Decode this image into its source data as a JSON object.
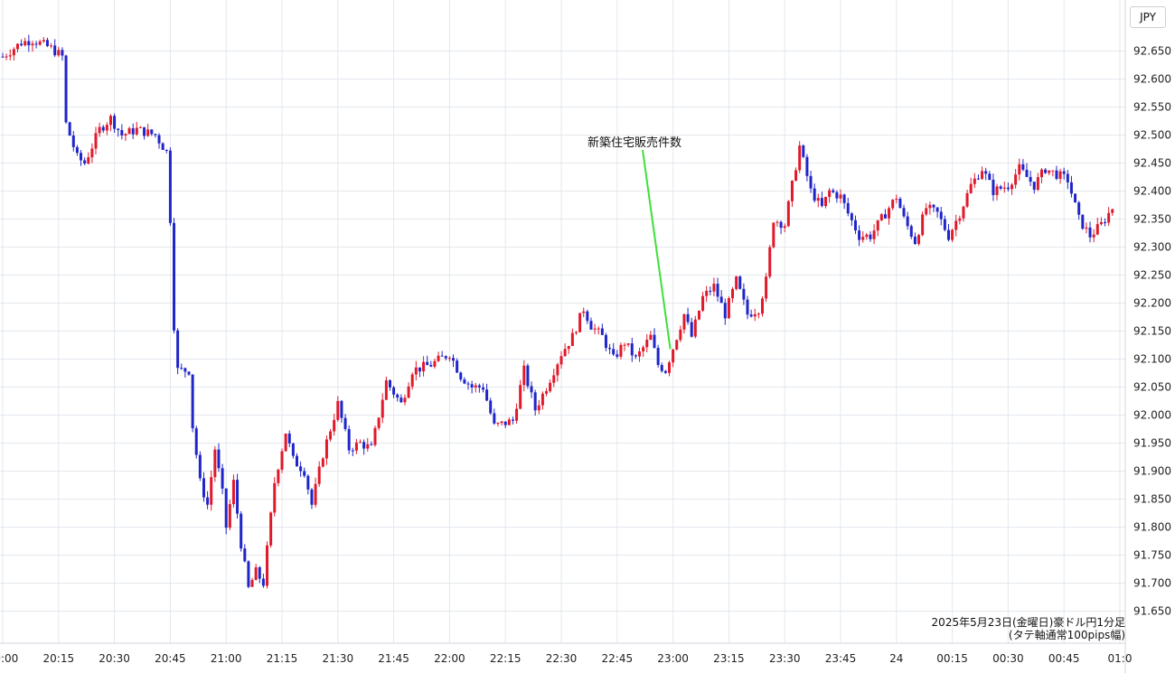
{
  "currency": "JPY",
  "caption": {
    "line1": "2025年5月23日(金曜日)豪ドル円1分足",
    "line2": "(タテ軸通常100pips幅)"
  },
  "colors": {
    "up": "#e0192b",
    "down": "#1f25c9",
    "grid": "#e3e8ee",
    "annotation_line": "#3ee03a"
  },
  "chart_data": {
    "type": "candlestick",
    "title": "",
    "xlabel": "",
    "ylabel": "",
    "ylim": [
      91.625,
      92.725
    ],
    "x_range": [
      "20:00",
      "01:00"
    ],
    "grid": true,
    "y_ticks": [
      "92.650",
      "92.600",
      "92.550",
      "92.500",
      "92.450",
      "92.400",
      "92.350",
      "92.300",
      "92.250",
      "92.200",
      "92.150",
      "92.100",
      "92.050",
      "92.000",
      "91.950",
      "91.900",
      "91.850",
      "91.800",
      "91.750",
      "91.700",
      "91.650"
    ],
    "x_ticks": [
      {
        "t": "20:00",
        "label": "20:00"
      },
      {
        "t": "20:15",
        "label": "20:15"
      },
      {
        "t": "20:30",
        "label": "20:30"
      },
      {
        "t": "20:45",
        "label": "20:45"
      },
      {
        "t": "21:00",
        "label": "21:00"
      },
      {
        "t": "21:15",
        "label": "21:15"
      },
      {
        "t": "21:30",
        "label": "21:30"
      },
      {
        "t": "21:45",
        "label": "21:45"
      },
      {
        "t": "22:00",
        "label": "22:00"
      },
      {
        "t": "22:15",
        "label": "22:15"
      },
      {
        "t": "22:30",
        "label": "22:30"
      },
      {
        "t": "22:45",
        "label": "22:45"
      },
      {
        "t": "23:00",
        "label": "23:00"
      },
      {
        "t": "23:15",
        "label": "23:15"
      },
      {
        "t": "23:30",
        "label": "23:30"
      },
      {
        "t": "23:45",
        "label": "23:45"
      },
      {
        "t": "24:00",
        "label": "24"
      },
      {
        "t": "00:15",
        "label": "00:15"
      },
      {
        "t": "00:30",
        "label": "00:30"
      },
      {
        "t": "00:45",
        "label": "00:45"
      },
      {
        "t": "01:00",
        "label": "01:0"
      }
    ],
    "price_path": [
      [
        "20:00",
        92.64
      ],
      [
        "20:05",
        92.665
      ],
      [
        "20:08",
        92.67
      ],
      [
        "20:13",
        92.655
      ],
      [
        "20:16",
        92.64
      ],
      [
        "20:17",
        92.52
      ],
      [
        "20:20",
        92.46
      ],
      [
        "20:22",
        92.45
      ],
      [
        "20:26",
        92.51
      ],
      [
        "20:29",
        92.53
      ],
      [
        "20:32",
        92.5
      ],
      [
        "20:36",
        92.51
      ],
      [
        "20:41",
        92.5
      ],
      [
        "20:44",
        92.47
      ],
      [
        "20:45",
        92.35
      ],
      [
        "20:46",
        92.16
      ],
      [
        "20:47",
        92.08
      ],
      [
        "20:50",
        92.08
      ],
      [
        "20:51",
        91.98
      ],
      [
        "20:53",
        91.88
      ],
      [
        "20:55",
        91.84
      ],
      [
        "20:57",
        91.94
      ],
      [
        "20:59",
        91.86
      ],
      [
        "21:00",
        91.8
      ],
      [
        "21:02",
        91.88
      ],
      [
        "21:04",
        91.77
      ],
      [
        "21:06",
        91.69
      ],
      [
        "21:08",
        91.72
      ],
      [
        "21:10",
        91.7
      ],
      [
        "21:13",
        91.88
      ],
      [
        "21:16",
        91.97
      ],
      [
        "21:18",
        91.92
      ],
      [
        "21:21",
        91.9
      ],
      [
        "21:23",
        91.84
      ],
      [
        "21:26",
        91.93
      ],
      [
        "21:30",
        92.02
      ],
      [
        "21:33",
        91.94
      ],
      [
        "21:36",
        91.95
      ],
      [
        "21:39",
        91.94
      ],
      [
        "21:43",
        92.06
      ],
      [
        "21:45",
        92.04
      ],
      [
        "21:47",
        92.02
      ],
      [
        "21:50",
        92.08
      ],
      [
        "21:55",
        92.09
      ],
      [
        "22:00",
        92.11
      ],
      [
        "22:03",
        92.07
      ],
      [
        "22:06",
        92.05
      ],
      [
        "22:09",
        92.05
      ],
      [
        "22:12",
        91.98
      ],
      [
        "22:17",
        91.99
      ],
      [
        "22:20",
        92.08
      ],
      [
        "22:23",
        92.01
      ],
      [
        "22:26",
        92.05
      ],
      [
        "22:30",
        92.11
      ],
      [
        "22:33",
        92.14
      ],
      [
        "22:36",
        92.19
      ],
      [
        "22:38",
        92.16
      ],
      [
        "22:41",
        92.14
      ],
      [
        "22:44",
        92.1
      ],
      [
        "22:47",
        92.13
      ],
      [
        "22:50",
        92.1
      ],
      [
        "22:54",
        92.14
      ],
      [
        "22:56",
        92.09
      ],
      [
        "22:58",
        92.08
      ],
      [
        "23:00",
        92.12
      ],
      [
        "23:03",
        92.18
      ],
      [
        "23:05",
        92.14
      ],
      [
        "23:08",
        92.21
      ],
      [
        "23:11",
        92.23
      ],
      [
        "23:14",
        92.18
      ],
      [
        "23:17",
        92.24
      ],
      [
        "23:20",
        92.18
      ],
      [
        "23:23",
        92.19
      ],
      [
        "23:25",
        92.24
      ],
      [
        "23:27",
        92.35
      ],
      [
        "23:30",
        92.34
      ],
      [
        "23:32",
        92.41
      ],
      [
        "23:34",
        92.48
      ],
      [
        "23:37",
        92.4
      ],
      [
        "23:40",
        92.37
      ],
      [
        "23:42",
        92.4
      ],
      [
        "23:45",
        92.39
      ],
      [
        "23:47",
        92.36
      ],
      [
        "23:50",
        92.32
      ],
      [
        "23:53",
        92.32
      ],
      [
        "23:56",
        92.35
      ],
      [
        "00:00",
        92.39
      ],
      [
        "00:02",
        92.35
      ],
      [
        "00:05",
        92.31
      ],
      [
        "00:08",
        92.37
      ],
      [
        "00:11",
        92.36
      ],
      [
        "00:14",
        92.32
      ],
      [
        "00:17",
        92.36
      ],
      [
        "00:20",
        92.41
      ],
      [
        "00:23",
        92.44
      ],
      [
        "00:26",
        92.4
      ],
      [
        "00:30",
        92.41
      ],
      [
        "00:33",
        92.44
      ],
      [
        "00:37",
        92.41
      ],
      [
        "00:40",
        92.44
      ],
      [
        "00:43",
        92.43
      ],
      [
        "00:46",
        92.42
      ],
      [
        "00:49",
        92.35
      ],
      [
        "00:52",
        92.32
      ],
      [
        "00:55",
        92.34
      ],
      [
        "00:58",
        92.37
      ]
    ],
    "annotations": [
      {
        "label": "新築住宅販売件数",
        "t": "23:00",
        "price": 92.118
      }
    ]
  }
}
